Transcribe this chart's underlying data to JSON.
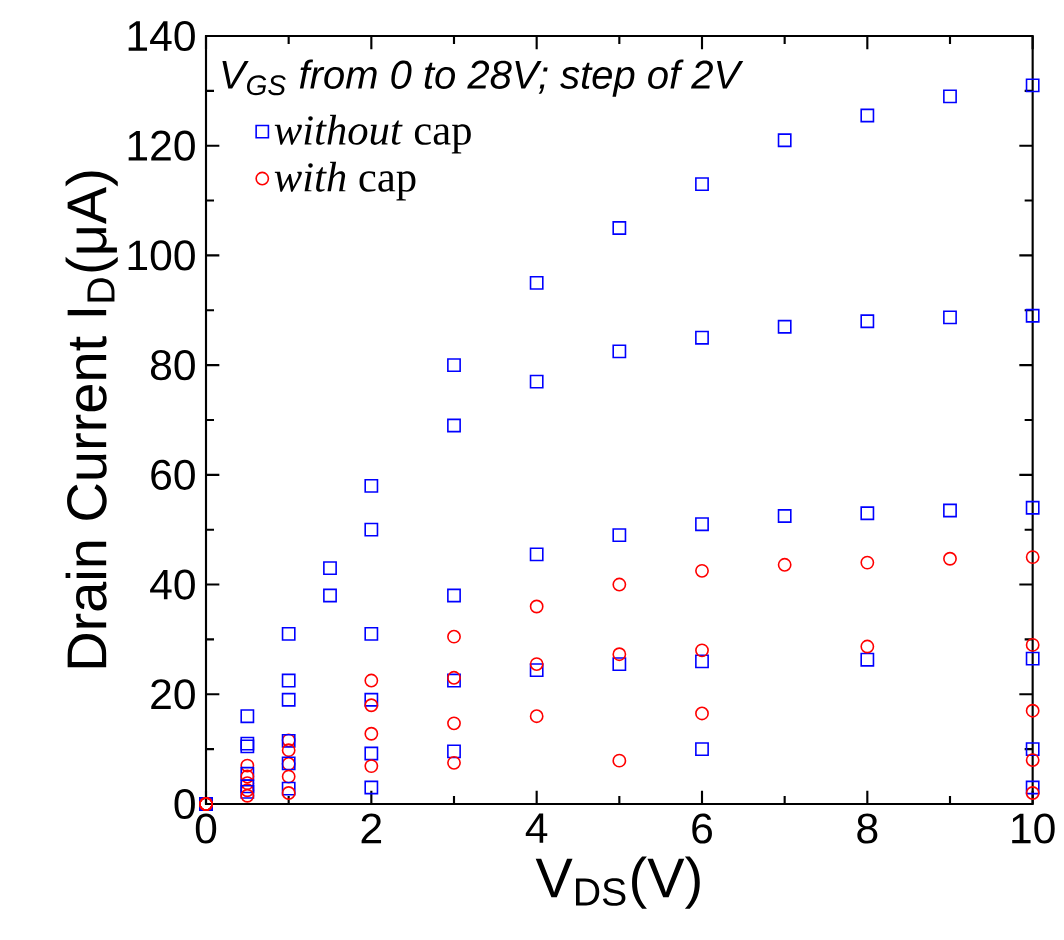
{
  "chart_data": {
    "type": "scatter",
    "xlabel": "V$_{DS}$(V)",
    "ylabel": "Drain Current I$_{D}$(μA)",
    "legend_title": "V$_{GS}$ from 0 to 28V; step of 2V",
    "legend": "top left",
    "xlim": [
      0,
      10
    ],
    "ylim": [
      0,
      140
    ],
    "xticks": [
      0,
      2,
      4,
      6,
      8,
      10
    ],
    "yticks": [
      0,
      20,
      40,
      60,
      80,
      100,
      120,
      140
    ],
    "series": [
      {
        "name": "*without* cap",
        "color": "#0000ff",
        "marker": "square",
        "x": [
          0,
          0.5,
          1,
          1.5,
          2,
          3,
          4,
          5,
          6,
          7,
          8,
          9,
          10
        ],
        "values": [
          0,
          16,
          31,
          43,
          58,
          80,
          95,
          105,
          113,
          121,
          125.5,
          129,
          131
        ]
      },
      {
        "name": "*with* cap",
        "color": "#ff0000",
        "marker": "circle",
        "x": [
          0,
          0.5,
          1,
          2,
          3,
          4,
          5,
          6,
          7,
          8,
          9,
          10
        ],
        "values": [
          0,
          7,
          11.6,
          22.5,
          30.5,
          36,
          40,
          42.5,
          43.6,
          44,
          44.7,
          45
        ]
      },
      {
        "color": "#0000ff",
        "marker": "square",
        "x": [
          0.5,
          1,
          1.5,
          2,
          3,
          4,
          5,
          6,
          7,
          8,
          9,
          10
        ],
        "values": [
          11,
          22.5,
          38,
          50,
          69,
          77,
          82.5,
          85,
          87,
          88,
          88.7,
          89
        ]
      },
      {
        "color": "#0000ff",
        "marker": "square",
        "x": [
          0,
          0.5,
          1,
          2,
          3,
          4,
          5,
          6,
          7,
          8,
          9,
          10
        ],
        "values": [
          0,
          10.5,
          19,
          31,
          38,
          45.5,
          49,
          51,
          52.5,
          53,
          53.5,
          54
        ]
      },
      {
        "color": "#0000ff",
        "marker": "square",
        "x": [
          0.5,
          1,
          2,
          3,
          4,
          5,
          6,
          8,
          10
        ],
        "values": [
          5.5,
          11.5,
          19,
          22.5,
          24.4,
          25.5,
          26,
          26.3,
          26.5
        ]
      },
      {
        "color": "#ff0000",
        "marker": "circle",
        "x": [
          0,
          0.5,
          1,
          2,
          3,
          4,
          5,
          6,
          8,
          10
        ],
        "values": [
          0,
          5,
          9.8,
          18,
          23,
          25.5,
          27.3,
          28,
          28.7,
          29
        ]
      },
      {
        "color": "#ff0000",
        "marker": "circle",
        "x": [
          0,
          0.5,
          1,
          2,
          3,
          4,
          6,
          10
        ],
        "values": [
          0,
          3.8,
          7.3,
          12.8,
          14.7,
          16,
          16.5,
          17
        ]
      },
      {
        "color": "#0000ff",
        "marker": "square",
        "x": [
          0.5,
          1,
          2,
          3,
          6,
          10
        ],
        "values": [
          3.2,
          7.4,
          9.2,
          9.6,
          10,
          10
        ]
      },
      {
        "color": "#ff0000",
        "marker": "circle",
        "x": [
          0,
          0.5,
          1,
          2,
          3,
          5,
          10
        ],
        "values": [
          0,
          2.5,
          5,
          6.9,
          7.5,
          7.9,
          8
        ]
      },
      {
        "color": "#0000ff",
        "marker": "square",
        "x": [
          0.5,
          1,
          2,
          10
        ],
        "values": [
          2.2,
          2.8,
          3,
          3
        ]
      },
      {
        "color": "#ff0000",
        "marker": "circle",
        "x": [
          0,
          0.5,
          1,
          10
        ],
        "values": [
          0,
          1.5,
          2,
          2
        ]
      }
    ]
  }
}
